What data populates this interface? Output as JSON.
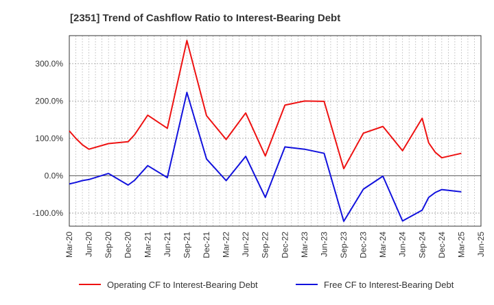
{
  "chart_data": {
    "type": "line",
    "title": "[2351]  Trend of Cashflow Ratio to Interest-Bearing Debt",
    "xlabel": "",
    "ylabel": "",
    "x_ticks": [
      "Mar-20",
      "Jun-20",
      "Sep-20",
      "Dec-20",
      "Mar-21",
      "Jun-21",
      "Sep-21",
      "Dec-21",
      "Mar-22",
      "Jun-22",
      "Sep-22",
      "Dec-22",
      "Mar-23",
      "Jun-23",
      "Sep-23",
      "Dec-23",
      "Mar-24",
      "Jun-24",
      "Sep-24",
      "Dec-24",
      "Mar-25",
      "Jun-25"
    ],
    "y_ticks": [
      {
        "value": -100,
        "label": "-100.0%"
      },
      {
        "value": 0,
        "label": "0.0%"
      },
      {
        "value": 100,
        "label": "100.0%"
      },
      {
        "value": 200,
        "label": "200.0%"
      },
      {
        "value": 300,
        "label": "300.0%"
      }
    ],
    "ylim": [
      -135,
      375
    ],
    "grid": true,
    "legend_position": "bottom",
    "series": [
      {
        "name": "Operating CF to Interest-Bearing Debt",
        "color": "#ee1111",
        "points": [
          [
            "2020-03",
            120
          ],
          [
            "2020-04",
            100
          ],
          [
            "2020-05",
            83
          ],
          [
            "2020-06",
            71
          ],
          [
            "2020-09",
            86
          ],
          [
            "2020-12",
            91
          ],
          [
            "2021-01",
            110
          ],
          [
            "2021-03",
            162
          ],
          [
            "2021-06",
            127
          ],
          [
            "2021-09",
            362
          ],
          [
            "2021-12",
            161
          ],
          [
            "2022-03",
            97
          ],
          [
            "2022-06",
            168
          ],
          [
            "2022-09",
            53
          ],
          [
            "2022-12",
            189
          ],
          [
            "2023-03",
            200
          ],
          [
            "2023-06",
            199
          ],
          [
            "2023-09",
            19
          ],
          [
            "2023-12",
            114
          ],
          [
            "2024-03",
            132
          ],
          [
            "2024-06",
            67
          ],
          [
            "2024-09",
            154
          ],
          [
            "2024-10",
            88
          ],
          [
            "2024-11",
            63
          ],
          [
            "2024-12",
            48
          ],
          [
            "2025-03",
            60
          ]
        ]
      },
      {
        "name": "Free CF to Interest-Bearing Debt",
        "color": "#1111dd",
        "points": [
          [
            "2020-03",
            -22
          ],
          [
            "2020-04",
            -18
          ],
          [
            "2020-05",
            -13
          ],
          [
            "2020-06",
            -10
          ],
          [
            "2020-09",
            6
          ],
          [
            "2020-12",
            -25
          ],
          [
            "2021-01",
            -12
          ],
          [
            "2021-03",
            27
          ],
          [
            "2021-06",
            -5
          ],
          [
            "2021-09",
            223
          ],
          [
            "2021-12",
            45
          ],
          [
            "2022-03",
            -13
          ],
          [
            "2022-06",
            52
          ],
          [
            "2022-09",
            -58
          ],
          [
            "2022-12",
            77
          ],
          [
            "2023-03",
            71
          ],
          [
            "2023-06",
            60
          ],
          [
            "2023-09",
            -122
          ],
          [
            "2023-12",
            -36
          ],
          [
            "2024-03",
            -1
          ],
          [
            "2024-06",
            -121
          ],
          [
            "2024-09",
            -92
          ],
          [
            "2024-10",
            -58
          ],
          [
            "2024-11",
            -45
          ],
          [
            "2024-12",
            -37
          ],
          [
            "2025-03",
            -43
          ]
        ]
      }
    ]
  }
}
